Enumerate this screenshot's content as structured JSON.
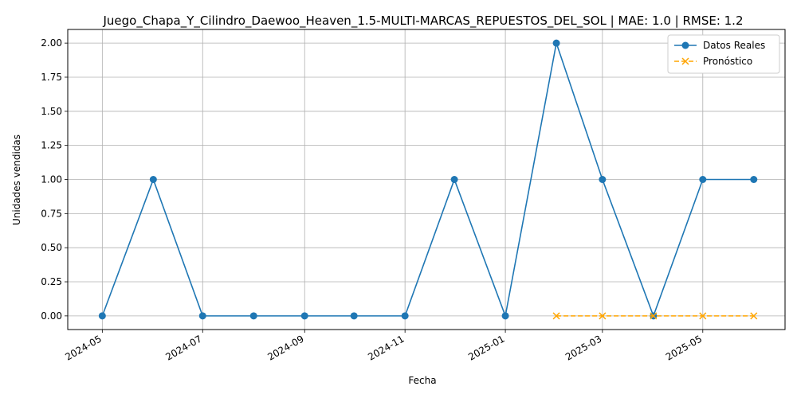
{
  "chart_data": {
    "type": "line",
    "title": "Juego_Chapa_Y_Cilindro_Daewoo_Heaven_1.5-MULTI-MARCAS_REPUESTOS_DEL_SOL | MAE: 1.0 | RMSE: 1.2",
    "xlabel": "Fecha",
    "ylabel": "Unidades vendidas",
    "ylim": [
      -0.1,
      2.1
    ],
    "xlim": [
      "2024-04-10",
      "2025-06-20"
    ],
    "grid": true,
    "legend_position": "top-right",
    "x_ticks": [
      "2024-05",
      "2024-07",
      "2024-09",
      "2024-11",
      "2025-01",
      "2025-03",
      "2025-05"
    ],
    "y_ticks": [
      "0.00",
      "0.25",
      "0.50",
      "0.75",
      "1.00",
      "1.25",
      "1.50",
      "1.75",
      "2.00"
    ],
    "series": [
      {
        "name": "Datos Reales",
        "color": "#1f77b4",
        "marker": "circle",
        "line_style": "solid",
        "x": [
          "2024-05-01",
          "2024-06-01",
          "2024-07-01",
          "2024-08-01",
          "2024-09-01",
          "2024-10-01",
          "2024-11-01",
          "2024-12-01",
          "2025-01-01",
          "2025-02-01",
          "2025-03-01",
          "2025-04-01",
          "2025-05-01",
          "2025-06-01"
        ],
        "values": [
          0,
          1,
          0,
          0,
          0,
          0,
          0,
          1,
          0,
          2,
          1,
          0,
          1,
          1
        ]
      },
      {
        "name": "Pronóstico",
        "color": "#ffa500",
        "marker": "x",
        "line_style": "dashed",
        "x": [
          "2025-02-01",
          "2025-03-01",
          "2025-04-01",
          "2025-05-01",
          "2025-06-01"
        ],
        "values": [
          0,
          0,
          0,
          0,
          0
        ]
      }
    ]
  }
}
